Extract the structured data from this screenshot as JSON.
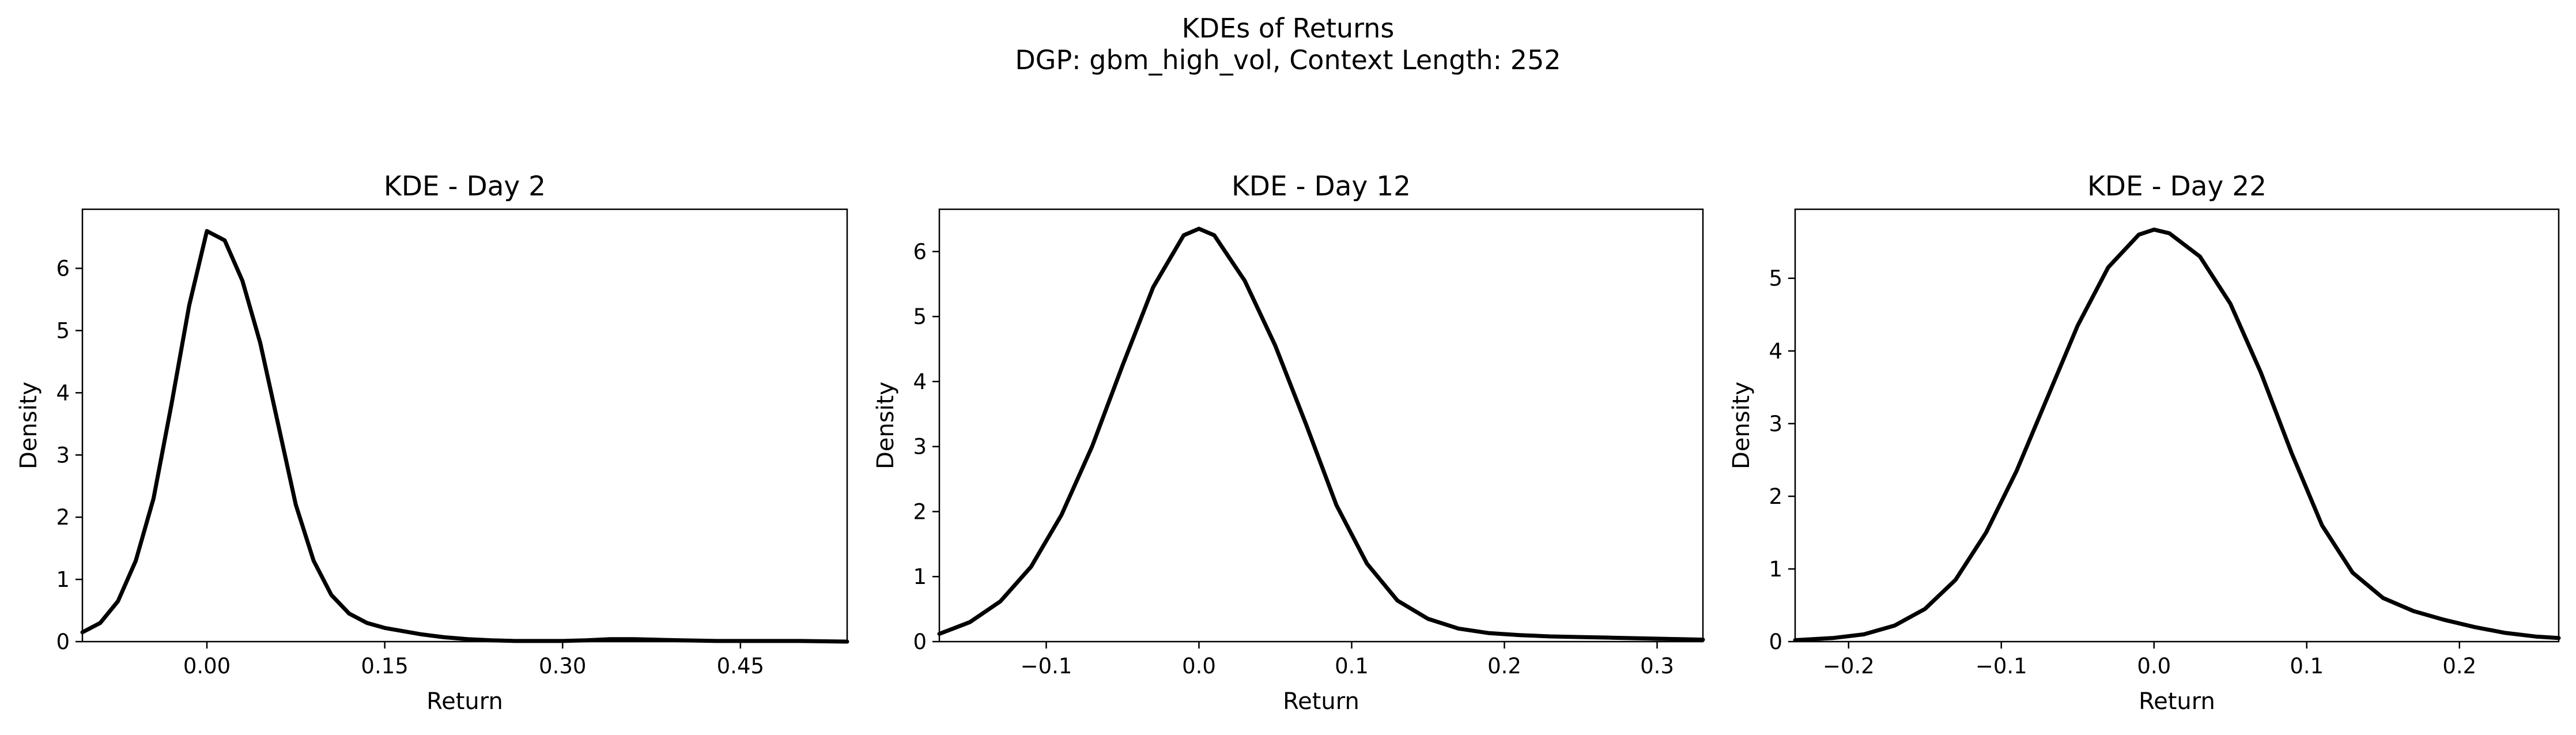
{
  "figure": {
    "title_line1": "KDEs of Returns",
    "title_line2": "DGP: gbm_high_vol, Context Length: 252"
  },
  "chart_data": [
    {
      "type": "line",
      "title": "KDE - Day 2",
      "xlabel": "Return",
      "ylabel": "Density",
      "xlim": [
        -0.105,
        0.54
      ],
      "ylim": [
        0,
        6.95
      ],
      "xticks": [
        0.0,
        0.15,
        0.3,
        0.45
      ],
      "xtick_labels": [
        "0.00",
        "0.15",
        "0.30",
        "0.45"
      ],
      "yticks": [
        0,
        1,
        2,
        3,
        4,
        5,
        6
      ],
      "ytick_labels": [
        "0",
        "1",
        "2",
        "3",
        "4",
        "5",
        "6"
      ],
      "grid": false,
      "series": [
        {
          "color": "#000000",
          "x": [
            -0.105,
            -0.09,
            -0.075,
            -0.06,
            -0.045,
            -0.03,
            -0.015,
            0.0,
            0.015,
            0.03,
            0.045,
            0.06,
            0.075,
            0.09,
            0.105,
            0.12,
            0.135,
            0.15,
            0.165,
            0.18,
            0.2,
            0.22,
            0.24,
            0.26,
            0.28,
            0.3,
            0.32,
            0.34,
            0.36,
            0.38,
            0.4,
            0.43,
            0.46,
            0.5,
            0.54
          ],
          "y": [
            0.15,
            0.3,
            0.65,
            1.3,
            2.3,
            3.8,
            5.4,
            6.6,
            6.45,
            5.8,
            4.8,
            3.5,
            2.2,
            1.3,
            0.75,
            0.45,
            0.3,
            0.22,
            0.17,
            0.12,
            0.07,
            0.04,
            0.02,
            0.01,
            0.01,
            0.01,
            0.02,
            0.04,
            0.04,
            0.03,
            0.02,
            0.01,
            0.01,
            0.01,
            0.0
          ]
        }
      ]
    },
    {
      "type": "line",
      "title": "KDE - Day 12",
      "xlabel": "Return",
      "ylabel": "Density",
      "xlim": [
        -0.17,
        0.33
      ],
      "ylim": [
        0,
        6.65
      ],
      "xticks": [
        -0.1,
        0.0,
        0.1,
        0.2,
        0.3
      ],
      "xtick_labels": [
        "−0.1",
        "0.0",
        "0.1",
        "0.2",
        "0.3"
      ],
      "yticks": [
        0,
        1,
        2,
        3,
        4,
        5,
        6
      ],
      "ytick_labels": [
        "0",
        "1",
        "2",
        "3",
        "4",
        "5",
        "6"
      ],
      "grid": false,
      "series": [
        {
          "color": "#000000",
          "x": [
            -0.17,
            -0.15,
            -0.13,
            -0.11,
            -0.09,
            -0.07,
            -0.05,
            -0.03,
            -0.01,
            0.0,
            0.01,
            0.03,
            0.05,
            0.07,
            0.09,
            0.11,
            0.13,
            0.15,
            0.17,
            0.19,
            0.21,
            0.23,
            0.25,
            0.27,
            0.29,
            0.31,
            0.33
          ],
          "y": [
            0.12,
            0.3,
            0.62,
            1.15,
            1.95,
            3.0,
            4.25,
            5.45,
            6.25,
            6.35,
            6.25,
            5.55,
            4.55,
            3.35,
            2.1,
            1.2,
            0.63,
            0.35,
            0.2,
            0.13,
            0.1,
            0.08,
            0.07,
            0.06,
            0.05,
            0.04,
            0.03
          ]
        }
      ]
    },
    {
      "type": "line",
      "title": "KDE - Day 22",
      "xlabel": "Return",
      "ylabel": "Density",
      "xlim": [
        -0.235,
        0.265
      ],
      "ylim": [
        0,
        5.95
      ],
      "xticks": [
        -0.2,
        -0.1,
        0.0,
        0.1,
        0.2
      ],
      "xtick_labels": [
        "−0.2",
        "−0.1",
        "0.0",
        "0.1",
        "0.2"
      ],
      "yticks": [
        0,
        1,
        2,
        3,
        4,
        5
      ],
      "ytick_labels": [
        "0",
        "1",
        "2",
        "3",
        "4",
        "5"
      ],
      "grid": false,
      "series": [
        {
          "color": "#000000",
          "x": [
            -0.235,
            -0.21,
            -0.19,
            -0.17,
            -0.15,
            -0.13,
            -0.11,
            -0.09,
            -0.07,
            -0.05,
            -0.03,
            -0.01,
            0.0,
            0.01,
            0.03,
            0.05,
            0.07,
            0.09,
            0.11,
            0.13,
            0.15,
            0.17,
            0.19,
            0.21,
            0.23,
            0.25,
            0.265
          ],
          "y": [
            0.02,
            0.05,
            0.1,
            0.22,
            0.45,
            0.85,
            1.5,
            2.35,
            3.35,
            4.35,
            5.15,
            5.6,
            5.67,
            5.62,
            5.3,
            4.65,
            3.7,
            2.6,
            1.6,
            0.95,
            0.6,
            0.42,
            0.3,
            0.2,
            0.12,
            0.07,
            0.05
          ]
        }
      ]
    }
  ]
}
